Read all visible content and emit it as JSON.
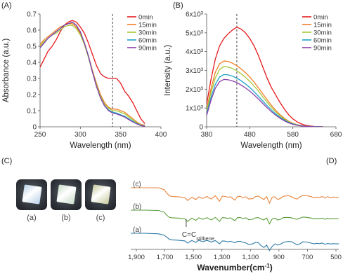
{
  "panel_labels": {
    "a": "(A)",
    "b": "(B)",
    "c": "(C)",
    "d": "(D)"
  },
  "photos": {
    "labels": [
      "(a)",
      "(b)",
      "(c)"
    ],
    "colors": [
      "#b7cfe8",
      "#c9dcc8",
      "#c5c89a"
    ]
  },
  "chart_data": [
    {
      "id": "A",
      "type": "line",
      "xlabel": "Wavelength (nm)",
      "ylabel": "Absorbance (a.u.)",
      "xlim": [
        250,
        400
      ],
      "ylim": [
        0,
        0.7
      ],
      "xticks": [
        "250",
        "300",
        "350",
        "400"
      ],
      "yticks": [
        "0",
        "0.1",
        "0.2",
        "0.3",
        "0.4",
        "0.5",
        "0.6",
        "0.7"
      ],
      "marker_line_x": 340,
      "legend_position": "top-right",
      "x": [
        250,
        255,
        260,
        265,
        270,
        275,
        280,
        285,
        290,
        295,
        300,
        305,
        310,
        315,
        320,
        325,
        330,
        335,
        340,
        345,
        350,
        355,
        360,
        365,
        370,
        375,
        380
      ],
      "series": [
        {
          "name": "0min",
          "color": "#e8191c",
          "values": [
            0.37,
            0.42,
            0.47,
            0.5,
            0.54,
            0.59,
            0.63,
            0.65,
            0.66,
            0.65,
            0.62,
            0.58,
            0.52,
            0.45,
            0.38,
            0.33,
            0.31,
            0.3,
            0.3,
            0.3,
            0.27,
            0.22,
            0.19,
            0.15,
            0.1,
            0.05,
            0.02
          ]
        },
        {
          "name": "15min",
          "color": "#f07e25",
          "values": [
            0.51,
            0.54,
            0.56,
            0.58,
            0.6,
            0.62,
            0.63,
            0.64,
            0.64,
            0.62,
            0.58,
            0.52,
            0.44,
            0.35,
            0.27,
            0.2,
            0.15,
            0.12,
            0.11,
            0.11,
            0.1,
            0.09,
            0.07,
            0.05,
            0.03,
            0.015,
            0.01
          ]
        },
        {
          "name": "30min",
          "color": "#a6c838",
          "values": [
            0.5,
            0.53,
            0.55,
            0.57,
            0.58,
            0.6,
            0.62,
            0.63,
            0.63,
            0.61,
            0.57,
            0.51,
            0.43,
            0.34,
            0.26,
            0.19,
            0.14,
            0.115,
            0.1,
            0.1,
            0.09,
            0.08,
            0.06,
            0.045,
            0.025,
            0.012,
            0.005
          ]
        },
        {
          "name": "60min",
          "color": "#1ba3c9",
          "values": [
            0.49,
            0.52,
            0.55,
            0.57,
            0.59,
            0.61,
            0.63,
            0.64,
            0.65,
            0.63,
            0.59,
            0.52,
            0.44,
            0.34,
            0.25,
            0.18,
            0.13,
            0.105,
            0.09,
            0.085,
            0.075,
            0.065,
            0.05,
            0.035,
            0.02,
            0.01,
            0.004
          ]
        },
        {
          "name": "90min",
          "color": "#8a3ea8",
          "values": [
            0.49,
            0.52,
            0.55,
            0.57,
            0.59,
            0.61,
            0.63,
            0.64,
            0.65,
            0.63,
            0.59,
            0.52,
            0.44,
            0.34,
            0.25,
            0.18,
            0.13,
            0.1,
            0.085,
            0.08,
            0.07,
            0.06,
            0.045,
            0.03,
            0.018,
            0.008,
            0.003
          ]
        }
      ]
    },
    {
      "id": "B",
      "type": "line",
      "xlabel": "Wavelength (nm)",
      "ylabel": "Intensity (a.u.)",
      "xlim": [
        380,
        680
      ],
      "ylim": [
        0,
        6000
      ],
      "xticks": [
        "380",
        "480",
        "580",
        "680"
      ],
      "yticks": [
        "0",
        "1x10³",
        "2x10³",
        "3x10³",
        "4x10³",
        "5x10³",
        "6x10³"
      ],
      "marker_line_x": 450,
      "legend_position": "top-right",
      "x": [
        380,
        390,
        400,
        410,
        420,
        430,
        440,
        450,
        460,
        470,
        480,
        490,
        500,
        510,
        520,
        530,
        540,
        550,
        560,
        570,
        580,
        590,
        600,
        610,
        620,
        630,
        640,
        650
      ],
      "series": [
        {
          "name": "0min",
          "color": "#e8191c",
          "values": [
            1200,
            2500,
            3600,
            4300,
            4700,
            4950,
            5150,
            5300,
            5200,
            5000,
            4700,
            4300,
            3800,
            3200,
            2600,
            2100,
            1700,
            1300,
            950,
            650,
            420,
            260,
            150,
            80,
            40,
            20,
            10,
            5
          ]
        },
        {
          "name": "15min",
          "color": "#f07e25",
          "values": [
            900,
            2000,
            2900,
            3350,
            3500,
            3480,
            3380,
            3250,
            3080,
            2880,
            2650,
            2380,
            2080,
            1760,
            1450,
            1150,
            880,
            650,
            460,
            300,
            190,
            110,
            60,
            30,
            15,
            8,
            4,
            2
          ]
        },
        {
          "name": "30min",
          "color": "#a6c838",
          "values": [
            800,
            1800,
            2600,
            3050,
            3200,
            3180,
            3100,
            2980,
            2820,
            2630,
            2420,
            2170,
            1900,
            1600,
            1310,
            1040,
            800,
            590,
            410,
            270,
            170,
            100,
            55,
            28,
            14,
            7,
            3,
            1
          ]
        },
        {
          "name": "60min",
          "color": "#1ba3c9",
          "values": [
            700,
            1550,
            2250,
            2650,
            2780,
            2760,
            2690,
            2590,
            2450,
            2280,
            2090,
            1870,
            1630,
            1380,
            1130,
            900,
            690,
            510,
            360,
            240,
            150,
            90,
            50,
            25,
            12,
            6,
            3,
            1
          ]
        },
        {
          "name": "90min",
          "color": "#8a3ea8",
          "values": [
            600,
            1400,
            2050,
            2400,
            2520,
            2500,
            2440,
            2350,
            2220,
            2070,
            1900,
            1700,
            1480,
            1250,
            1020,
            810,
            620,
            460,
            320,
            210,
            130,
            80,
            45,
            22,
            11,
            5,
            2,
            1
          ]
        }
      ]
    },
    {
      "id": "D",
      "type": "line",
      "xlabel": "Wavenumber(cm⁻¹)",
      "xlim": [
        2000,
        500
      ],
      "xticks": [
        "1,900",
        "1,700",
        "1,500",
        "1,300",
        "1,100",
        "900",
        "700",
        "500"
      ],
      "annotation": {
        "text": "C=C",
        "subscript": "stilbene",
        "x": 1600
      },
      "series": [
        {
          "name": "(c)",
          "color": "#e8843a",
          "x": [
            2000,
            1900,
            1800,
            1780,
            1760,
            1740,
            1720,
            1700,
            1650,
            1610,
            1590,
            1560,
            1530,
            1510,
            1480,
            1450,
            1420,
            1390,
            1360,
            1340,
            1320,
            1300,
            1280,
            1250,
            1230,
            1210,
            1190,
            1170,
            1150,
            1120,
            1100,
            1080,
            1060,
            1040,
            1020,
            1000,
            980,
            960,
            940,
            920,
            900,
            880,
            860,
            840,
            820,
            800,
            780,
            760,
            740,
            720,
            700,
            680,
            660,
            640,
            620,
            600,
            580,
            560,
            540,
            520,
            500
          ],
          "values": [
            10,
            10,
            10,
            9.5,
            9,
            7,
            5.5,
            5.2,
            5,
            4.5,
            3,
            4.8,
            3.5,
            5,
            4.2,
            5.2,
            3.8,
            5.6,
            2.6,
            5.4,
            5.2,
            4.8,
            5,
            3.2,
            5.1,
            5.3,
            4.5,
            5,
            3.8,
            4,
            5.2,
            5.4,
            4.5,
            3.5,
            5.1,
            1.5,
            4.8,
            5,
            3.5,
            4.2,
            5.3,
            5.5,
            5.6,
            5,
            4.2,
            3.8,
            5,
            5.8,
            5.7,
            5.5,
            5.1,
            4.5,
            4.9,
            4.6,
            5.2,
            4.3,
            5.1,
            4.5,
            4.9,
            4.8,
            4.6
          ]
        },
        {
          "name": "(b)",
          "color": "#5a9e3c",
          "x": [
            2000,
            1900,
            1800,
            1780,
            1760,
            1740,
            1720,
            1700,
            1650,
            1610,
            1590,
            1560,
            1530,
            1510,
            1480,
            1450,
            1420,
            1390,
            1360,
            1340,
            1320,
            1300,
            1280,
            1250,
            1230,
            1210,
            1190,
            1170,
            1150,
            1120,
            1100,
            1080,
            1060,
            1040,
            1020,
            1000,
            980,
            960,
            940,
            920,
            900,
            880,
            860,
            840,
            820,
            800,
            780,
            760,
            740,
            720,
            700,
            680,
            660,
            640,
            620,
            600,
            580,
            560,
            540,
            520,
            500
          ],
          "values": [
            10,
            10,
            9.8,
            9.4,
            9,
            7.2,
            6,
            5.8,
            5.6,
            5.2,
            3.8,
            5.6,
            4.4,
            5.8,
            5,
            5.9,
            4.6,
            6,
            3.8,
            5.9,
            5.8,
            5.5,
            5.8,
            4.2,
            5.9,
            6,
            5.3,
            5.8,
            4.8,
            5,
            5.8,
            5.9,
            5.2,
            4.6,
            5.7,
            2.5,
            5.2,
            5.6,
            4.6,
            5,
            5.9,
            6,
            6,
            5.8,
            5.3,
            5,
            5.6,
            6.2,
            6.1,
            5.9,
            5.7,
            5.2,
            5.5,
            5.3,
            5.6,
            5,
            5.5,
            5.1,
            5.4,
            5.3,
            5.2
          ]
        },
        {
          "name": "(a)",
          "color": "#2b7aa8",
          "x": [
            2000,
            1900,
            1800,
            1780,
            1760,
            1740,
            1720,
            1700,
            1650,
            1610,
            1590,
            1560,
            1530,
            1510,
            1480,
            1450,
            1420,
            1390,
            1360,
            1340,
            1320,
            1300,
            1280,
            1250,
            1230,
            1210,
            1190,
            1170,
            1150,
            1120,
            1100,
            1080,
            1060,
            1040,
            1020,
            1000,
            980,
            960,
            940,
            920,
            900,
            880,
            860,
            840,
            820,
            800,
            780,
            760,
            740,
            720,
            700,
            680,
            660,
            640,
            620,
            600,
            580,
            560,
            540,
            520,
            500
          ],
          "values": [
            10,
            10,
            9.7,
            9.3,
            9,
            7.8,
            6.6,
            6.4,
            6.1,
            5.8,
            4.6,
            6,
            5,
            6.2,
            5.3,
            6.1,
            5.2,
            6,
            4.2,
            5.8,
            5.7,
            5.3,
            5.6,
            4.8,
            5.5,
            5.6,
            5,
            4.7,
            3.8,
            4.2,
            5,
            4.8,
            3.2,
            2.2,
            3.5,
            0.5,
            2.8,
            4.2,
            3.5,
            4,
            5,
            5.3,
            5.5,
            5.3,
            4.5,
            3.6,
            4.2,
            5.3,
            5.2,
            5,
            4.6,
            4.2,
            4.5,
            4.3,
            4.6,
            4,
            4.4,
            4.1,
            4.3,
            4.2,
            4.2
          ]
        }
      ]
    }
  ]
}
